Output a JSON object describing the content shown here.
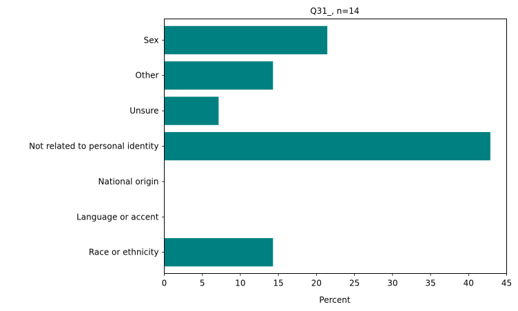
{
  "chart_data": {
    "type": "bar",
    "orientation": "horizontal",
    "title": "Q31_, n=14",
    "xlabel": "Percent",
    "ylabel": "",
    "categories": [
      "Sex",
      "Other",
      "Unsure",
      "Not related to personal identity",
      "National origin",
      "Language or accent",
      "Race or ethnicity"
    ],
    "values": [
      21.43,
      14.29,
      7.14,
      42.86,
      0,
      0,
      14.29
    ],
    "xlim": [
      0,
      45
    ],
    "xticks": [
      0,
      5,
      10,
      15,
      20,
      25,
      30,
      35,
      40,
      45
    ],
    "grid": false,
    "legend": "none",
    "bar_color": "#008080"
  }
}
